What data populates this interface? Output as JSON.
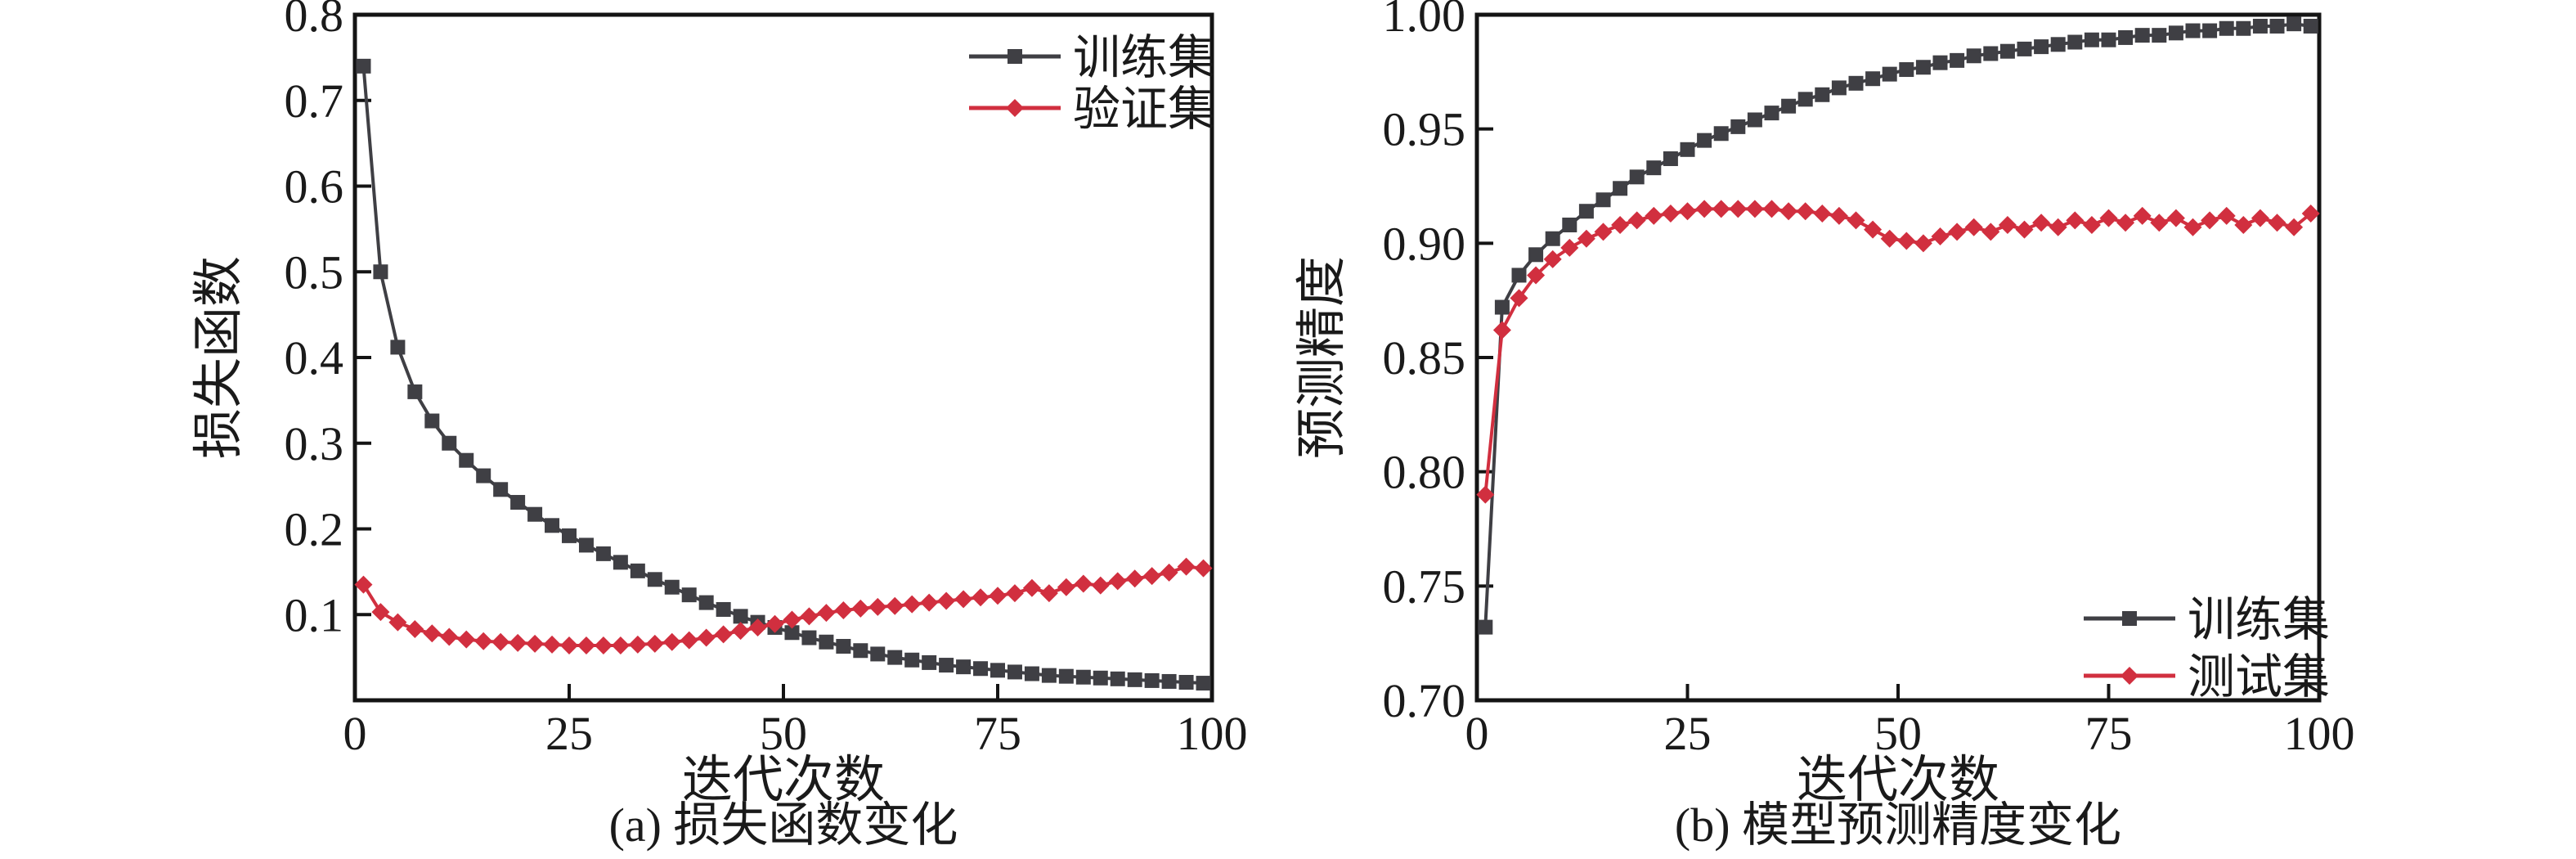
{
  "figure": {
    "background": "#ffffff",
    "text_color": "#1a1a1a",
    "axis_color": "#141414"
  },
  "chart_data": [
    {
      "type": "line",
      "panel_caption": "(a) 损失函数变化",
      "xlabel": "迭代次数",
      "ylabel": "损失函数",
      "xlim": [
        0,
        100
      ],
      "ylim": [
        0,
        0.8
      ],
      "grid": false,
      "legend_position": "top-right",
      "xticks": [
        0,
        25,
        50,
        75,
        100
      ],
      "xtick_labels": [
        "0",
        "25",
        "50",
        "75",
        "100"
      ],
      "yticks": [
        0.1,
        0.2,
        0.3,
        0.4,
        0.5,
        0.6,
        0.7,
        0.8
      ],
      "ytick_labels": [
        "0.1",
        "0.2",
        "0.3",
        "0.4",
        "0.5",
        "0.6",
        "0.7",
        "0.8"
      ],
      "x": [
        1,
        3,
        5,
        7,
        9,
        11,
        13,
        15,
        17,
        19,
        21,
        23,
        25,
        27,
        29,
        31,
        33,
        35,
        37,
        39,
        41,
        43,
        45,
        47,
        49,
        51,
        53,
        55,
        57,
        59,
        61,
        63,
        65,
        67,
        69,
        71,
        73,
        75,
        77,
        79,
        81,
        83,
        85,
        87,
        89,
        91,
        93,
        95,
        97,
        99
      ],
      "series": [
        {
          "name": "训练集",
          "color": "#3f3f44",
          "marker": "square",
          "values": [
            0.74,
            0.5,
            0.412,
            0.36,
            0.326,
            0.3,
            0.28,
            0.262,
            0.246,
            0.231,
            0.217,
            0.204,
            0.192,
            0.181,
            0.171,
            0.161,
            0.151,
            0.141,
            0.132,
            0.123,
            0.114,
            0.106,
            0.098,
            0.091,
            0.085,
            0.079,
            0.073,
            0.068,
            0.063,
            0.058,
            0.054,
            0.05,
            0.047,
            0.044,
            0.041,
            0.039,
            0.037,
            0.035,
            0.033,
            0.031,
            0.029,
            0.028,
            0.027,
            0.026,
            0.025,
            0.024,
            0.023,
            0.022,
            0.021,
            0.02
          ]
        },
        {
          "name": "验证集",
          "color": "#d12f3f",
          "marker": "diamond",
          "values": [
            0.135,
            0.103,
            0.091,
            0.083,
            0.078,
            0.074,
            0.071,
            0.069,
            0.068,
            0.067,
            0.066,
            0.065,
            0.064,
            0.064,
            0.064,
            0.064,
            0.065,
            0.066,
            0.068,
            0.07,
            0.073,
            0.077,
            0.081,
            0.085,
            0.089,
            0.094,
            0.098,
            0.102,
            0.105,
            0.107,
            0.109,
            0.11,
            0.112,
            0.114,
            0.116,
            0.118,
            0.12,
            0.122,
            0.125,
            0.131,
            0.125,
            0.132,
            0.136,
            0.134,
            0.139,
            0.142,
            0.145,
            0.149,
            0.156,
            0.154
          ]
        }
      ]
    },
    {
      "type": "line",
      "panel_caption": "(b) 模型预测精度变化",
      "xlabel": "迭代次数",
      "ylabel": "预测精度",
      "xlim": [
        0,
        100
      ],
      "ylim": [
        0.7,
        1.0
      ],
      "grid": false,
      "legend_position": "bottom-right",
      "xticks": [
        0,
        25,
        50,
        75,
        100
      ],
      "xtick_labels": [
        "0",
        "25",
        "50",
        "75",
        "100"
      ],
      "yticks": [
        0.7,
        0.75,
        0.8,
        0.85,
        0.9,
        0.95,
        1.0
      ],
      "ytick_labels": [
        "0.70",
        "0.75",
        "0.80",
        "0.85",
        "0.90",
        "0.95",
        "1.00"
      ],
      "x": [
        1,
        3,
        5,
        7,
        9,
        11,
        13,
        15,
        17,
        19,
        21,
        23,
        25,
        27,
        29,
        31,
        33,
        35,
        37,
        39,
        41,
        43,
        45,
        47,
        49,
        51,
        53,
        55,
        57,
        59,
        61,
        63,
        65,
        67,
        69,
        71,
        73,
        75,
        77,
        79,
        81,
        83,
        85,
        87,
        89,
        91,
        93,
        95,
        97,
        99
      ],
      "series": [
        {
          "name": "训练集",
          "color": "#3f3f44",
          "marker": "square",
          "values": [
            0.732,
            0.872,
            0.886,
            0.895,
            0.902,
            0.908,
            0.914,
            0.919,
            0.924,
            0.929,
            0.933,
            0.937,
            0.941,
            0.945,
            0.948,
            0.951,
            0.954,
            0.957,
            0.96,
            0.963,
            0.965,
            0.968,
            0.97,
            0.972,
            0.974,
            0.976,
            0.977,
            0.979,
            0.98,
            0.982,
            0.983,
            0.984,
            0.985,
            0.986,
            0.987,
            0.988,
            0.989,
            0.989,
            0.99,
            0.991,
            0.991,
            0.992,
            0.993,
            0.993,
            0.994,
            0.994,
            0.995,
            0.995,
            0.996,
            0.995
          ]
        },
        {
          "name": "测试集",
          "color": "#d12f3f",
          "marker": "diamond",
          "values": [
            0.79,
            0.862,
            0.876,
            0.886,
            0.893,
            0.898,
            0.902,
            0.905,
            0.908,
            0.91,
            0.912,
            0.913,
            0.914,
            0.915,
            0.915,
            0.915,
            0.915,
            0.915,
            0.914,
            0.914,
            0.913,
            0.912,
            0.91,
            0.906,
            0.902,
            0.901,
            0.9,
            0.903,
            0.905,
            0.907,
            0.905,
            0.908,
            0.906,
            0.909,
            0.907,
            0.91,
            0.908,
            0.911,
            0.909,
            0.912,
            0.909,
            0.911,
            0.907,
            0.91,
            0.912,
            0.908,
            0.911,
            0.909,
            0.907,
            0.913
          ]
        }
      ]
    }
  ]
}
